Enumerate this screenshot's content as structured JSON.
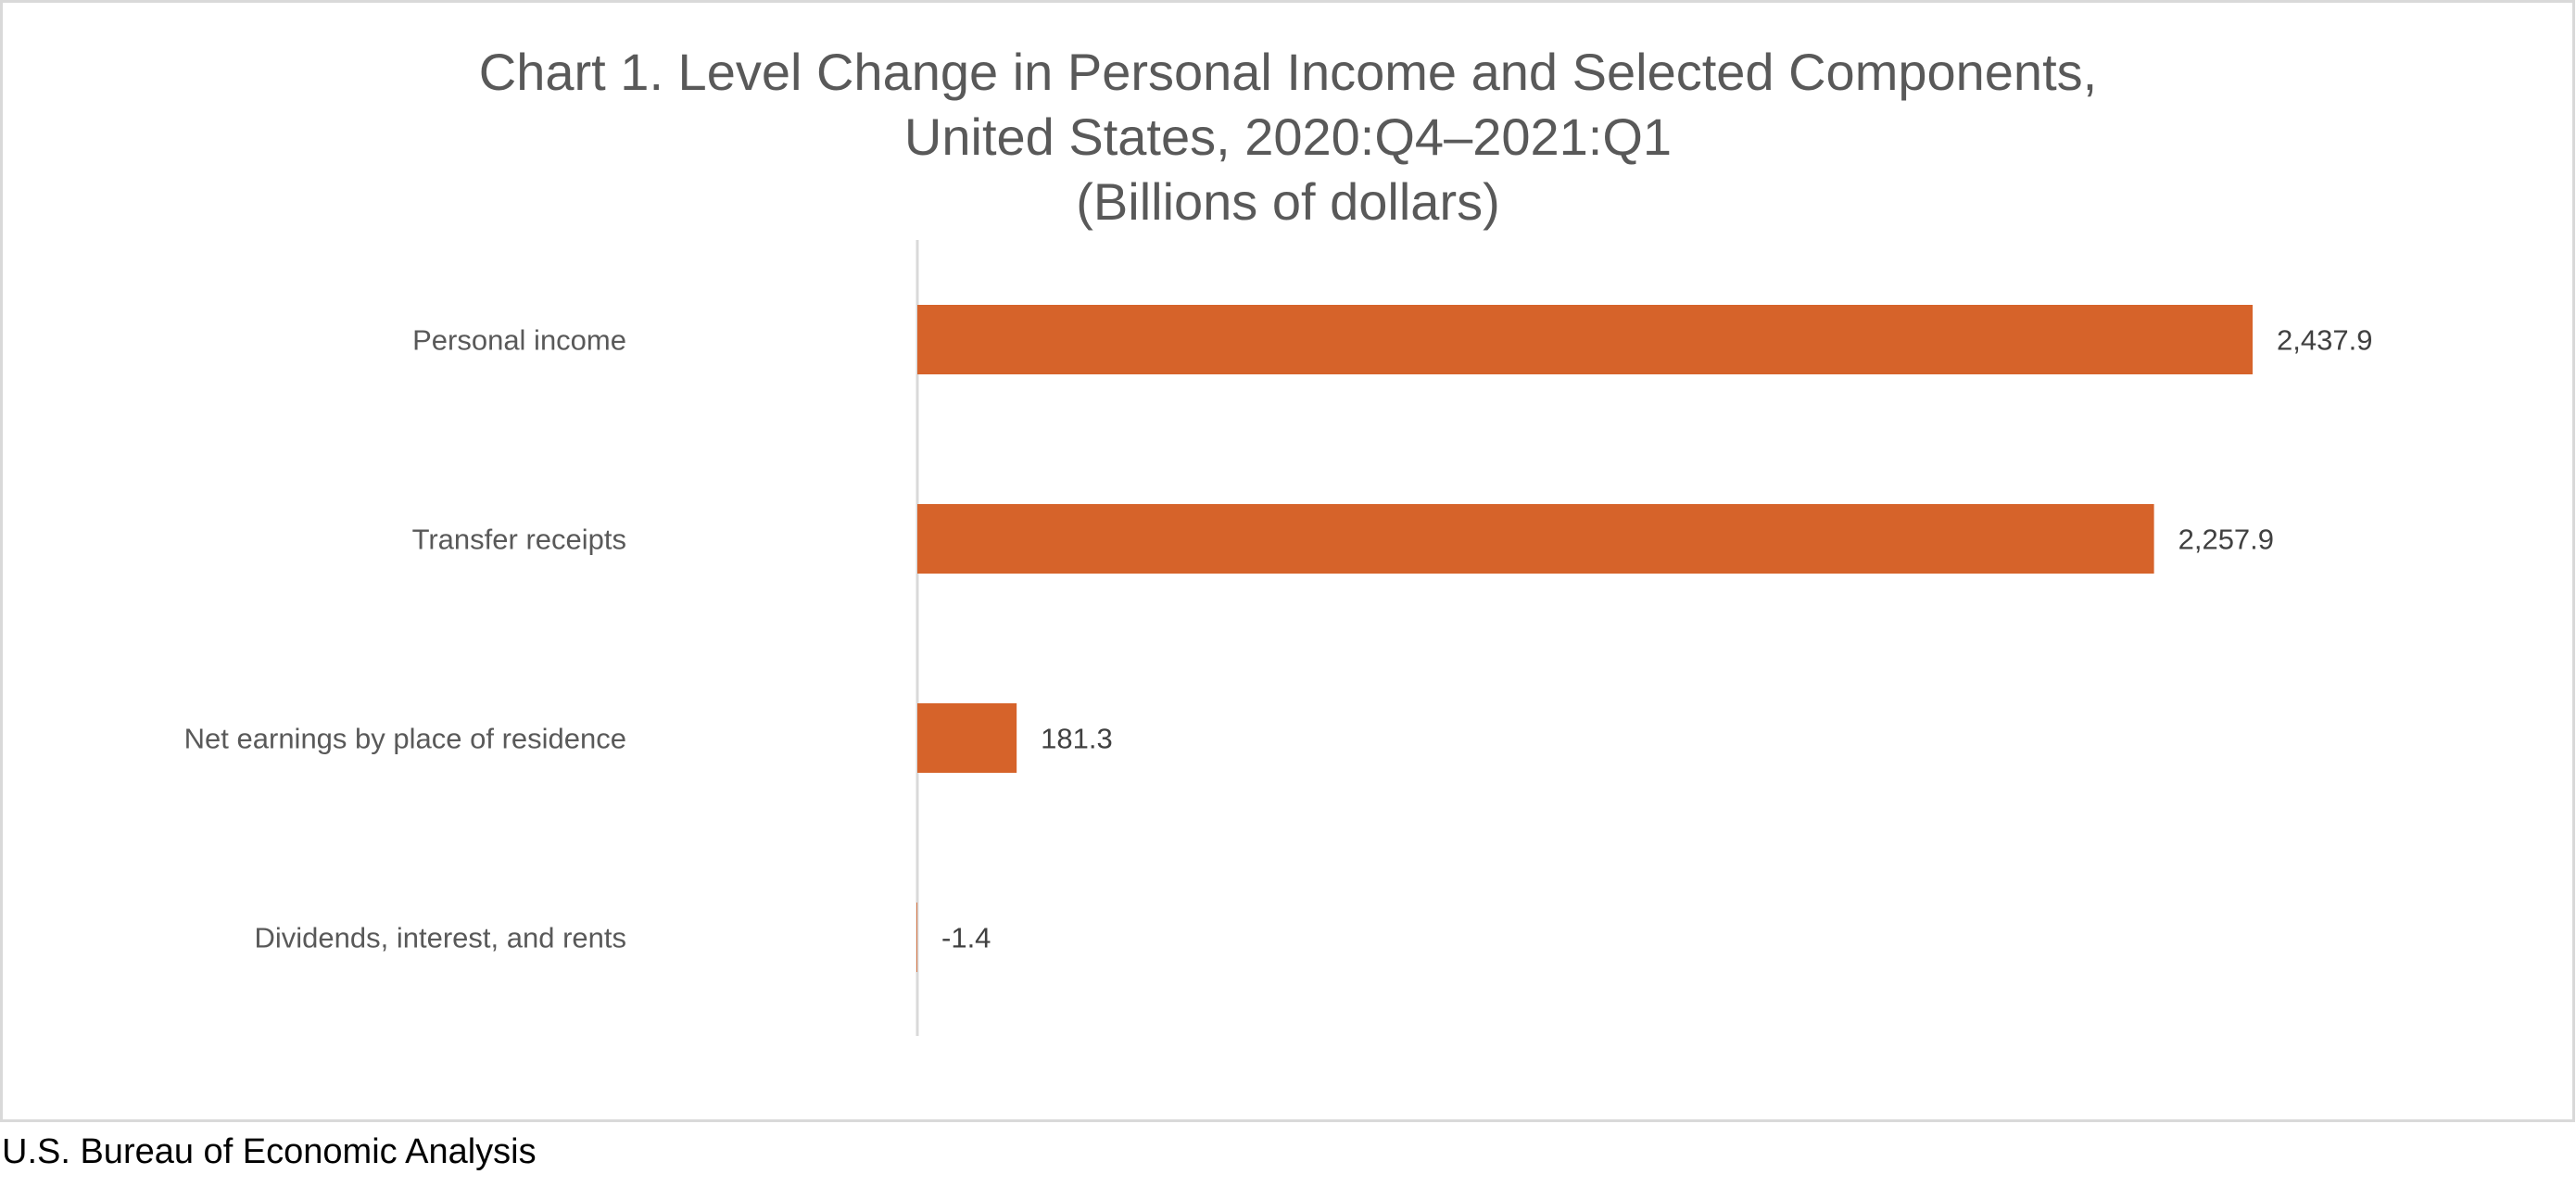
{
  "chart_data": {
    "type": "bar",
    "orientation": "horizontal",
    "title_lines": [
      "Chart 1. Level Change in Personal Income and Selected Components,",
      "United States, 2020:Q4–2021:Q1",
      "(Billions of dollars)"
    ],
    "categories": [
      "Personal income",
      "Transfer receipts",
      "Net earnings by place of residence",
      "Dividends, interest, and rents"
    ],
    "values": [
      2437.9,
      2257.9,
      181.3,
      -1.4
    ],
    "data_labels": [
      "2,437.9",
      "2,257.9",
      "181.3",
      "-1.4"
    ],
    "xlim": [
      0,
      2700
    ],
    "grid": false,
    "legend": "none",
    "bar_color": "#D6632A"
  },
  "footer": "U.S. Bureau of Economic Analysis"
}
